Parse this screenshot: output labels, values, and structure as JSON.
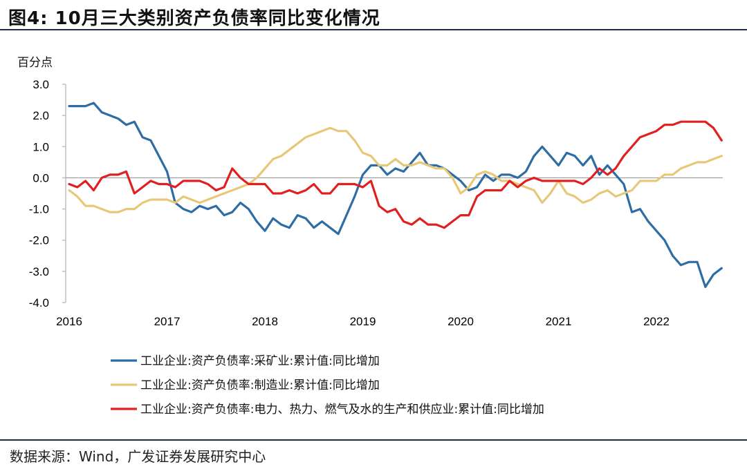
{
  "header": {
    "title": "图4:  10月三大类别资产负债率同比变化情况"
  },
  "footer": {
    "source": "数据来源：Wind，广发证券发展研究中心"
  },
  "chart_data": {
    "type": "line",
    "unit_label": "百分点",
    "ylim": [
      -4.0,
      3.0
    ],
    "y_ticks": [
      "3.0",
      "2.0",
      "1.0",
      "0.0",
      "-1.0",
      "-2.0",
      "-3.0",
      "-4.0"
    ],
    "y_tick_values": [
      3,
      2,
      1,
      0,
      -1,
      -2,
      -3,
      -4
    ],
    "x_ticks": [
      "2016",
      "2017",
      "2018",
      "2019",
      "2020",
      "2021",
      "2022"
    ],
    "x_start": 2016.0,
    "x_step_months": 1,
    "legend_position": "bottom",
    "series": [
      {
        "name": "工业企业:资产负债率:采矿业:累计值:同比增加",
        "color": "#2e6ca4",
        "values": [
          2.3,
          2.3,
          2.3,
          2.4,
          2.1,
          2.0,
          1.9,
          1.7,
          1.8,
          1.3,
          1.2,
          0.7,
          0.2,
          -0.8,
          -1.0,
          -1.1,
          -0.9,
          -1.0,
          -0.9,
          -1.2,
          -1.1,
          -0.8,
          -1.0,
          -1.4,
          -1.7,
          -1.3,
          -1.5,
          -1.6,
          -1.2,
          -1.3,
          -1.6,
          -1.4,
          -1.6,
          -1.8,
          -1.2,
          -0.6,
          0.1,
          0.4,
          0.4,
          0.1,
          0.3,
          0.2,
          0.5,
          0.8,
          0.4,
          0.4,
          0.3,
          0.1,
          -0.1,
          -0.4,
          -0.3,
          0.1,
          -0.1,
          0.1,
          0.1,
          0.0,
          0.2,
          0.7,
          1.0,
          0.7,
          0.4,
          0.8,
          0.7,
          0.4,
          0.7,
          0.1,
          0.4,
          0.1,
          -0.2,
          -1.1,
          -1.0,
          -1.4,
          -1.7,
          -2.0,
          -2.5,
          -2.8,
          -2.7,
          -2.7,
          -3.5,
          -3.1,
          -2.9
        ]
      },
      {
        "name": "工业企业:资产负债率:制造业:累计值:同比增加",
        "color": "#e6c878",
        "values": [
          -0.4,
          -0.6,
          -0.9,
          -0.9,
          -1.0,
          -1.1,
          -1.1,
          -1.0,
          -1.0,
          -0.8,
          -0.7,
          -0.7,
          -0.7,
          -0.8,
          -0.6,
          -0.7,
          -0.8,
          -0.7,
          -0.6,
          -0.5,
          -0.4,
          -0.3,
          -0.2,
          0.0,
          0.3,
          0.6,
          0.7,
          0.9,
          1.1,
          1.3,
          1.4,
          1.5,
          1.6,
          1.5,
          1.5,
          1.2,
          0.8,
          0.7,
          0.4,
          0.4,
          0.6,
          0.4,
          0.4,
          0.5,
          0.4,
          0.3,
          0.3,
          0.0,
          -0.5,
          -0.3,
          0.1,
          0.2,
          0.1,
          -0.1,
          -0.1,
          -0.2,
          -0.3,
          -0.4,
          -0.8,
          -0.5,
          -0.1,
          -0.5,
          -0.6,
          -0.8,
          -0.7,
          -0.5,
          -0.4,
          -0.6,
          -0.5,
          -0.4,
          -0.1,
          -0.1,
          -0.1,
          0.1,
          0.1,
          0.3,
          0.4,
          0.5,
          0.5,
          0.6,
          0.7
        ]
      },
      {
        "name": "工业企业:资产负债率:电力、热力、燃气及水的生产和供应业:累计值:同比增加",
        "color": "#e02020",
        "values": [
          -0.2,
          -0.3,
          -0.1,
          -0.4,
          0.0,
          0.1,
          0.1,
          0.2,
          -0.5,
          -0.3,
          -0.1,
          -0.2,
          -0.2,
          -0.3,
          -0.1,
          -0.1,
          -0.1,
          -0.2,
          -0.4,
          -0.3,
          0.3,
          0.0,
          -0.2,
          -0.2,
          -0.2,
          -0.5,
          -0.5,
          -0.4,
          -0.5,
          -0.4,
          -0.2,
          -0.5,
          -0.5,
          -0.2,
          -0.2,
          -0.2,
          -0.3,
          -0.1,
          -0.9,
          -1.1,
          -1.0,
          -1.4,
          -1.5,
          -1.3,
          -1.5,
          -1.5,
          -1.6,
          -1.4,
          -1.2,
          -1.2,
          -0.6,
          -0.4,
          -0.4,
          -0.4,
          -0.1,
          -0.3,
          -0.1,
          0.0,
          -0.1,
          -0.1,
          -0.1,
          -0.1,
          -0.1,
          -0.2,
          0.0,
          0.3,
          0.1,
          0.3,
          0.7,
          1.0,
          1.3,
          1.4,
          1.5,
          1.7,
          1.7,
          1.8,
          1.8,
          1.8,
          1.8,
          1.6,
          1.2
        ]
      }
    ]
  }
}
